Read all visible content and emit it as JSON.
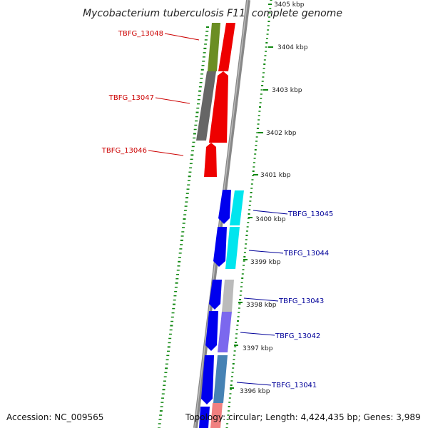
{
  "title": "Mycobacterium tuberculosis F11, complete genome",
  "accession": "Accession: NC_009565",
  "topology": "Topology: circular; Length: 4,424,435 bp; Genes: 3,989",
  "colors": {
    "backbone": "#888888",
    "tick": "#118811",
    "reverse_label": "#cc0000",
    "forward_label": "#000099"
  },
  "scale_labels": [
    {
      "id": "kbp-3405",
      "text": "3405 kbp"
    },
    {
      "id": "kbp-3404",
      "text": "3404 kbp"
    },
    {
      "id": "kbp-3403",
      "text": "3403 kbp"
    },
    {
      "id": "kbp-3402",
      "text": "3402 kbp"
    },
    {
      "id": "kbp-3401",
      "text": "3401 kbp"
    },
    {
      "id": "kbp-3400",
      "text": "3400 kbp"
    },
    {
      "id": "kbp-3399",
      "text": "3399 kbp"
    },
    {
      "id": "kbp-3398",
      "text": "3398 kbp"
    },
    {
      "id": "kbp-3397",
      "text": "3397 kbp"
    },
    {
      "id": "kbp-3396",
      "text": "3396 kbp"
    }
  ],
  "gene_labels": {
    "TBFG_13048": "TBFG_13048",
    "TBFG_13047": "TBFG_13047",
    "TBFG_13046": "TBFG_13046",
    "TBFG_13045": "TBFG_13045",
    "TBFG_13044": "TBFG_13044",
    "TBFG_13043": "TBFG_13043",
    "TBFG_13042": "TBFG_13042",
    "TBFG_13041": "TBFG_13041"
  }
}
